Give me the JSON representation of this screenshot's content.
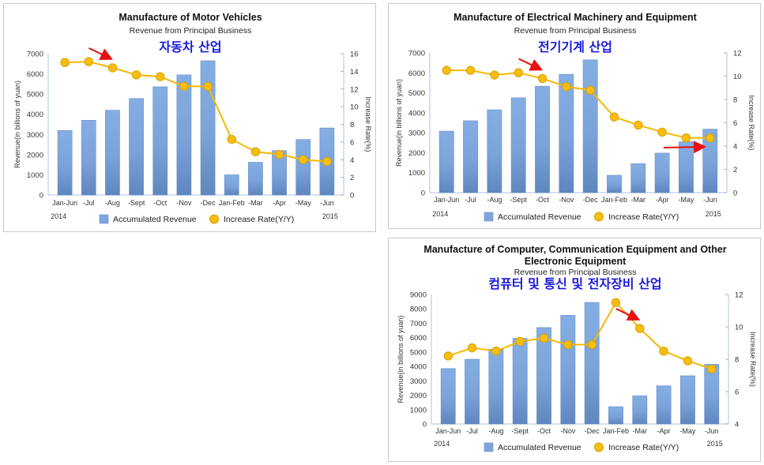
{
  "chart_data": [
    {
      "type": "bar",
      "title": "Manufacture of Motor Vehicles",
      "subtitle": "Revenue from Principal Business",
      "annotation": "자동차 산업",
      "categories": [
        "Jan-Jun",
        "-Jul",
        "-Aug",
        "-Sept",
        "-Oct",
        "-Nov",
        "-Dec",
        "Jan-Feb",
        "-Mar",
        "-Apr",
        "-May",
        "-Jun"
      ],
      "year_labels": [
        "2014",
        "2015"
      ],
      "ylabel": "Revenue(in billions of yuan)",
      "y2label": "Increase Rate(%)",
      "ylim": [
        0,
        7000
      ],
      "yticks": [
        0,
        1000,
        2000,
        3000,
        4000,
        5000,
        6000,
        7000
      ],
      "y2lim": [
        0,
        16
      ],
      "y2ticks": [
        0,
        2,
        4,
        6,
        8,
        10,
        12,
        14,
        16
      ],
      "series": [
        {
          "name": "Accumulated Revenue",
          "type": "bar",
          "axis": "left",
          "color": "#7ea6dc",
          "values": [
            3200,
            3700,
            4200,
            4780,
            5360,
            5950,
            6650,
            1000,
            1620,
            2200,
            2750,
            3320
          ]
        },
        {
          "name": "Increase Rate(Y/Y)",
          "type": "line",
          "axis": "right",
          "color": "#f5b800",
          "values": [
            15.0,
            15.1,
            14.4,
            13.6,
            13.4,
            12.3,
            12.3,
            6.3,
            4.9,
            4.6,
            4.0,
            3.8
          ]
        }
      ],
      "arrows": [
        {
          "points_to": "-Aug",
          "direction": "down-right",
          "color": "#e81010"
        }
      ],
      "legend_position": "bottom"
    },
    {
      "type": "bar",
      "title": "Manufacture of Electrical Machinery and Equipment",
      "subtitle": "Revenue from Principal Business",
      "annotation": "전기기계 산업",
      "categories": [
        "Jan-Jun",
        "-Jul",
        "-Aug",
        "-Sept",
        "-Oct",
        "-Nov",
        "-Dec",
        "Jan-Feb",
        "-Mar",
        "-Apr",
        "-May",
        "-Jun"
      ],
      "year_labels": [
        "2014",
        "2015"
      ],
      "ylabel": "Revenue(in billions of yuan)",
      "y2label": "Increase Rate(%)",
      "ylim": [
        0,
        7000
      ],
      "yticks": [
        0,
        1000,
        2000,
        3000,
        4000,
        5000,
        6000,
        7000
      ],
      "y2lim": [
        0,
        12
      ],
      "y2ticks": [
        0,
        2,
        4,
        6,
        8,
        10,
        12
      ],
      "series": [
        {
          "name": "Accumulated Revenue",
          "type": "bar",
          "axis": "left",
          "color": "#7ea6dc",
          "values": [
            3080,
            3600,
            4150,
            4750,
            5330,
            5930,
            6650,
            870,
            1450,
            1980,
            2550,
            3180
          ]
        },
        {
          "name": "Increase Rate(Y/Y)",
          "type": "line",
          "axis": "right",
          "color": "#f5b800",
          "values": [
            10.5,
            10.5,
            10.1,
            10.3,
            9.8,
            9.1,
            8.8,
            6.5,
            5.8,
            5.2,
            4.7,
            4.7
          ]
        }
      ],
      "arrows": [
        {
          "points_to": "-Oct",
          "direction": "down-right",
          "color": "#e81010"
        },
        {
          "points_to": "4 (right axis)",
          "direction": "right",
          "color": "#e81010"
        }
      ],
      "legend_position": "bottom"
    },
    {
      "type": "bar",
      "title": "Manufacture of Computer, Communication Equipment and Other",
      "title_line2": "Electronic Equipment",
      "subtitle": "Revenue from Principal Business",
      "annotation": "컴퓨터 및 통신 및 전자장비 산업",
      "categories": [
        "Jan-Jun",
        "-Jul",
        "-Aug",
        "-Sept",
        "-Oct",
        "-Nov",
        "-Dec",
        "Jan-Feb",
        "-Mar",
        "-Apr",
        "-May",
        "-Jun"
      ],
      "year_labels": [
        "2014",
        "2015"
      ],
      "ylabel": "Revenue(in billions of yuan)",
      "y2label": "Increase Rate(%)",
      "ylim": [
        0,
        9000
      ],
      "yticks": [
        0,
        1000,
        2000,
        3000,
        4000,
        5000,
        6000,
        7000,
        8000,
        9000
      ],
      "y2lim": [
        4,
        12
      ],
      "y2ticks": [
        4,
        6,
        8,
        10,
        12
      ],
      "series": [
        {
          "name": "Accumulated Revenue",
          "type": "bar",
          "axis": "left",
          "color": "#7ea6dc",
          "values": [
            3850,
            4500,
            5200,
            5950,
            6700,
            7550,
            8450,
            1200,
            1950,
            2650,
            3350,
            4150
          ]
        },
        {
          "name": "Increase Rate(Y/Y)",
          "type": "line",
          "axis": "right",
          "color": "#f5b800",
          "values": [
            8.2,
            8.7,
            8.5,
            9.1,
            9.3,
            8.9,
            8.9,
            11.5,
            9.9,
            8.5,
            7.9,
            7.4
          ]
        }
      ],
      "arrows": [
        {
          "points_to": "-Mar",
          "direction": "down-right",
          "color": "#e81010"
        }
      ],
      "legend_position": "bottom"
    }
  ]
}
